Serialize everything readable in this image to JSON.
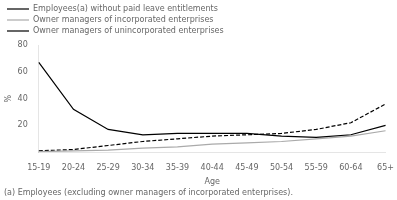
{
  "chart_data": {
    "type": "line",
    "categories": [
      "15-19",
      "20-24",
      "25-29",
      "30-34",
      "35-39",
      "40-44",
      "45-49",
      "50-54",
      "55-59",
      "60-64",
      "65+"
    ],
    "series": [
      {
        "name": "Employees(a) without paid leave entitlements",
        "color": "#000000",
        "line_style": "solid",
        "values": [
          67,
          32,
          17,
          13,
          14,
          14,
          14,
          12,
          11,
          13,
          20
        ]
      },
      {
        "name": "Owner managers of incorporated enterprises",
        "color": "#aaaaaa",
        "line_style": "solid",
        "values": [
          0.5,
          1,
          1.5,
          3,
          4,
          6,
          7,
          8,
          10,
          12,
          16
        ]
      },
      {
        "name": "Owner managers of unincorporated enterprises",
        "color": "#000000",
        "line_style": "dashed",
        "values": [
          1,
          2,
          5,
          8,
          10,
          12,
          13,
          14,
          17,
          22,
          36
        ]
      }
    ],
    "xlabel": "Age",
    "ylabel": "%",
    "ylim": [
      0,
      80
    ],
    "yticks": [
      20,
      40,
      60,
      80
    ],
    "annotations": [
      "(a) Employees (excluding owner managers of incorporated enterprises)."
    ],
    "grid": false,
    "legend": "top"
  }
}
